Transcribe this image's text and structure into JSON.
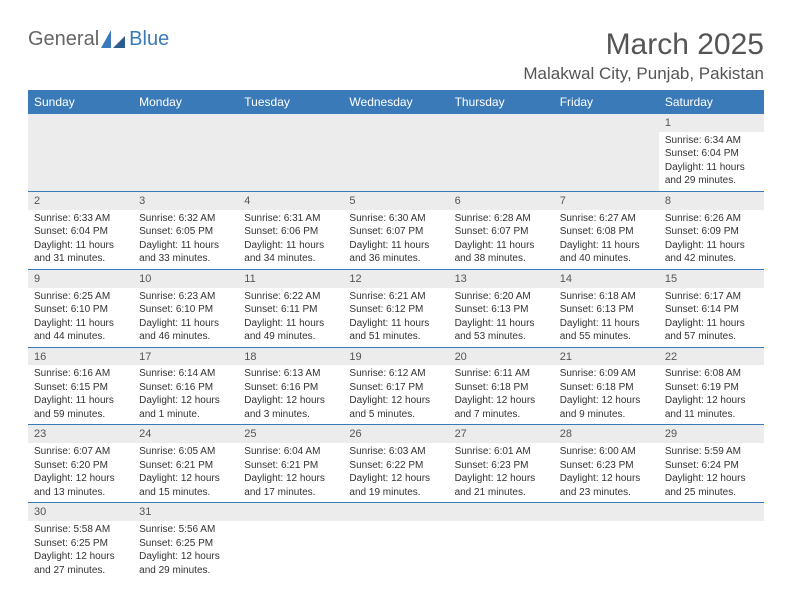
{
  "logo": {
    "gen": "General",
    "blue": "Blue"
  },
  "title": "March 2025",
  "location": "Malakwal City, Punjab, Pakistan",
  "headers": [
    "Sunday",
    "Monday",
    "Tuesday",
    "Wednesday",
    "Thursday",
    "Friday",
    "Saturday"
  ],
  "colors": {
    "header_bg": "#3a7ab8",
    "header_text": "#ffffff",
    "daynum_bg": "#ececec",
    "border": "#3a7ab8",
    "text": "#333333"
  },
  "weeks": [
    [
      null,
      null,
      null,
      null,
      null,
      null,
      {
        "d": "1",
        "sr": "6:34 AM",
        "ss": "6:04 PM",
        "dl": "11 hours and 29 minutes."
      }
    ],
    [
      {
        "d": "2",
        "sr": "6:33 AM",
        "ss": "6:04 PM",
        "dl": "11 hours and 31 minutes."
      },
      {
        "d": "3",
        "sr": "6:32 AM",
        "ss": "6:05 PM",
        "dl": "11 hours and 33 minutes."
      },
      {
        "d": "4",
        "sr": "6:31 AM",
        "ss": "6:06 PM",
        "dl": "11 hours and 34 minutes."
      },
      {
        "d": "5",
        "sr": "6:30 AM",
        "ss": "6:07 PM",
        "dl": "11 hours and 36 minutes."
      },
      {
        "d": "6",
        "sr": "6:28 AM",
        "ss": "6:07 PM",
        "dl": "11 hours and 38 minutes."
      },
      {
        "d": "7",
        "sr": "6:27 AM",
        "ss": "6:08 PM",
        "dl": "11 hours and 40 minutes."
      },
      {
        "d": "8",
        "sr": "6:26 AM",
        "ss": "6:09 PM",
        "dl": "11 hours and 42 minutes."
      }
    ],
    [
      {
        "d": "9",
        "sr": "6:25 AM",
        "ss": "6:10 PM",
        "dl": "11 hours and 44 minutes."
      },
      {
        "d": "10",
        "sr": "6:23 AM",
        "ss": "6:10 PM",
        "dl": "11 hours and 46 minutes."
      },
      {
        "d": "11",
        "sr": "6:22 AM",
        "ss": "6:11 PM",
        "dl": "11 hours and 49 minutes."
      },
      {
        "d": "12",
        "sr": "6:21 AM",
        "ss": "6:12 PM",
        "dl": "11 hours and 51 minutes."
      },
      {
        "d": "13",
        "sr": "6:20 AM",
        "ss": "6:13 PM",
        "dl": "11 hours and 53 minutes."
      },
      {
        "d": "14",
        "sr": "6:18 AM",
        "ss": "6:13 PM",
        "dl": "11 hours and 55 minutes."
      },
      {
        "d": "15",
        "sr": "6:17 AM",
        "ss": "6:14 PM",
        "dl": "11 hours and 57 minutes."
      }
    ],
    [
      {
        "d": "16",
        "sr": "6:16 AM",
        "ss": "6:15 PM",
        "dl": "11 hours and 59 minutes."
      },
      {
        "d": "17",
        "sr": "6:14 AM",
        "ss": "6:16 PM",
        "dl": "12 hours and 1 minute."
      },
      {
        "d": "18",
        "sr": "6:13 AM",
        "ss": "6:16 PM",
        "dl": "12 hours and 3 minutes."
      },
      {
        "d": "19",
        "sr": "6:12 AM",
        "ss": "6:17 PM",
        "dl": "12 hours and 5 minutes."
      },
      {
        "d": "20",
        "sr": "6:11 AM",
        "ss": "6:18 PM",
        "dl": "12 hours and 7 minutes."
      },
      {
        "d": "21",
        "sr": "6:09 AM",
        "ss": "6:18 PM",
        "dl": "12 hours and 9 minutes."
      },
      {
        "d": "22",
        "sr": "6:08 AM",
        "ss": "6:19 PM",
        "dl": "12 hours and 11 minutes."
      }
    ],
    [
      {
        "d": "23",
        "sr": "6:07 AM",
        "ss": "6:20 PM",
        "dl": "12 hours and 13 minutes."
      },
      {
        "d": "24",
        "sr": "6:05 AM",
        "ss": "6:21 PM",
        "dl": "12 hours and 15 minutes."
      },
      {
        "d": "25",
        "sr": "6:04 AM",
        "ss": "6:21 PM",
        "dl": "12 hours and 17 minutes."
      },
      {
        "d": "26",
        "sr": "6:03 AM",
        "ss": "6:22 PM",
        "dl": "12 hours and 19 minutes."
      },
      {
        "d": "27",
        "sr": "6:01 AM",
        "ss": "6:23 PM",
        "dl": "12 hours and 21 minutes."
      },
      {
        "d": "28",
        "sr": "6:00 AM",
        "ss": "6:23 PM",
        "dl": "12 hours and 23 minutes."
      },
      {
        "d": "29",
        "sr": "5:59 AM",
        "ss": "6:24 PM",
        "dl": "12 hours and 25 minutes."
      }
    ],
    [
      {
        "d": "30",
        "sr": "5:58 AM",
        "ss": "6:25 PM",
        "dl": "12 hours and 27 minutes."
      },
      {
        "d": "31",
        "sr": "5:56 AM",
        "ss": "6:25 PM",
        "dl": "12 hours and 29 minutes."
      },
      null,
      null,
      null,
      null,
      null
    ]
  ],
  "labels": {
    "sunrise": "Sunrise:",
    "sunset": "Sunset:",
    "daylight": "Daylight:"
  }
}
